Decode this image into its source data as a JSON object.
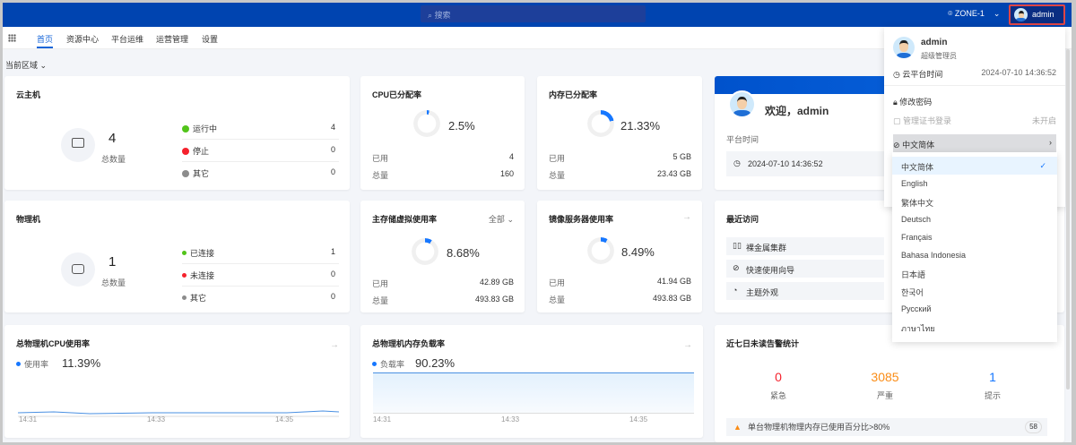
{
  "topbar": {
    "search_placeholder": "搜索",
    "zone": "ZONE-1",
    "user": "admin"
  },
  "nav": {
    "tabs": [
      "首页",
      "资源中心",
      "平台运维",
      "运营管理",
      "设置"
    ],
    "active": 0
  },
  "region_selector": "当前区域",
  "vm": {
    "title": "云主机",
    "total": "4",
    "total_label": "总数量",
    "stats": [
      {
        "label": "运行中",
        "value": "4",
        "color": "#52c41a"
      },
      {
        "label": "停止",
        "value": "0",
        "color": "#f5222d"
      },
      {
        "label": "其它",
        "value": "0",
        "color": "#8c8c8c"
      }
    ]
  },
  "cpu_alloc": {
    "title": "CPU已分配率",
    "percent": "2.5%",
    "value": 2.5,
    "used_label": "已用",
    "used": "4",
    "total_label": "总量",
    "total": "160"
  },
  "mem_alloc": {
    "title": "内存已分配率",
    "percent": "21.33%",
    "value": 21.33,
    "used_label": "已用",
    "used": "5 GB",
    "total_label": "总量",
    "total": "23.43 GB"
  },
  "welcome": {
    "greeting": "欢迎，admin",
    "time_label": "平台时间",
    "time": "2024-07-10 14:36:52"
  },
  "host": {
    "title": "物理机",
    "total": "1",
    "total_label": "总数量",
    "stats": [
      {
        "label": "已连接",
        "value": "1",
        "color": "#52c41a"
      },
      {
        "label": "未连接",
        "value": "0",
        "color": "#f5222d"
      },
      {
        "label": "其它",
        "value": "0",
        "color": "#8c8c8c"
      }
    ]
  },
  "storage": {
    "title": "主存储虚拟使用率",
    "filter": "全部",
    "percent": "8.68%",
    "value": 8.68,
    "used_label": "已用",
    "used": "42.89 GB",
    "total_label": "总量",
    "total": "493.83 GB"
  },
  "image": {
    "title": "镜像服务器使用率",
    "percent": "8.49%",
    "value": 8.49,
    "used_label": "已用",
    "used": "41.94 GB",
    "total_label": "总量",
    "total": "493.83 GB"
  },
  "recent": {
    "title": "最近访问",
    "items": [
      "裸金属集群",
      "快速使用向导",
      "主题外观"
    ]
  },
  "cpu_usage": {
    "title": "总物理机CPU使用率",
    "legend": "使用率",
    "value": "11.39%",
    "x_ticks": [
      "14:31",
      "14:33",
      "14:35"
    ]
  },
  "mem_load": {
    "title": "总物理机内存负载率",
    "legend": "负载率",
    "value": "90.23%",
    "x_ticks": [
      "14:31",
      "14:33",
      "14:35"
    ]
  },
  "alerts": {
    "title": "近七日未读告警统计",
    "counts": [
      {
        "value": "0",
        "label": "紧急",
        "color": "#f5222d"
      },
      {
        "value": "3085",
        "label": "严重",
        "color": "#fa8c16"
      },
      {
        "value": "1",
        "label": "提示",
        "color": "#1677ff"
      }
    ],
    "item": "单台物理机物理内存已使用百分比>80%",
    "item_count": "58"
  },
  "user_menu": {
    "name": "admin",
    "role": "超级管理员",
    "time_label": "云平台时间",
    "time": "2024-07-10 14:36:52",
    "change_password": "修改密码",
    "cert_login": "管理证书登录",
    "cert_status": "未开启",
    "language": "中文简体"
  },
  "languages": {
    "items": [
      "中文简体",
      "English",
      "繁体中文",
      "Deutsch",
      "Français",
      "Bahasa Indonesia",
      "日本語",
      "한국어",
      "Русский",
      "ภาษาไทย"
    ],
    "selected": 0
  }
}
